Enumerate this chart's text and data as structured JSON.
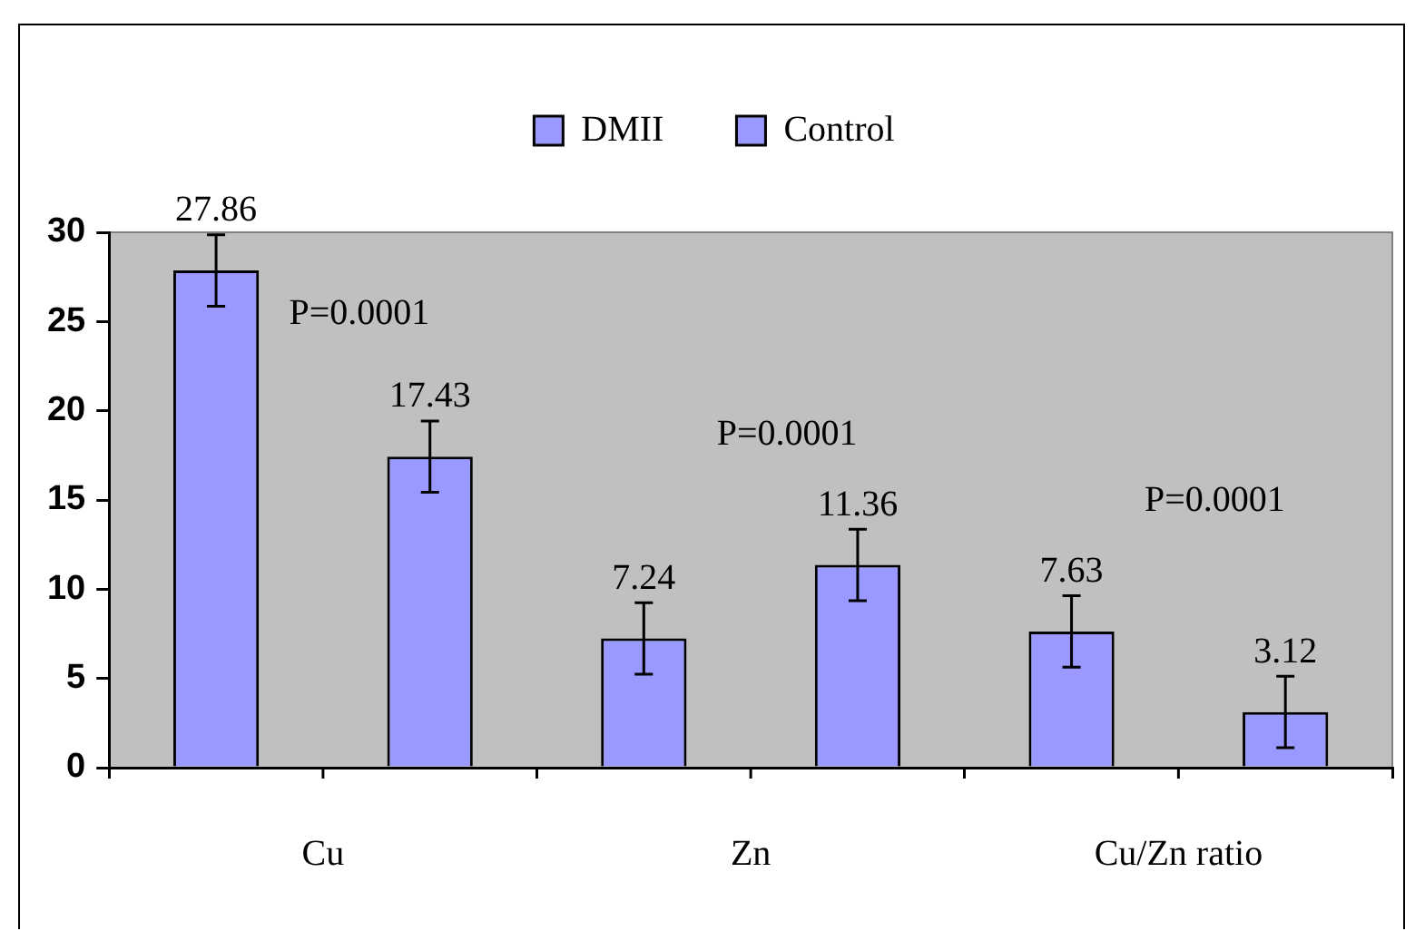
{
  "chart_data": {
    "type": "bar",
    "categories": [
      "Cu",
      "Zn",
      "Cu/Zn ratio"
    ],
    "series": [
      {
        "name": "DMII",
        "color": "#9999ff",
        "values": [
          27.86,
          7.24,
          7.63
        ],
        "errors": [
          2,
          2,
          2
        ]
      },
      {
        "name": "Control",
        "color": "#9999ff",
        "values": [
          17.43,
          11.36,
          3.12
        ],
        "errors": [
          2,
          2,
          2
        ]
      }
    ],
    "ylim": [
      0,
      30
    ],
    "yticks": [
      0,
      5,
      10,
      15,
      20,
      25,
      30
    ],
    "grid": false,
    "legend": "top",
    "data_labels": true,
    "annotations": [
      "P=0.0001",
      "P=0.0001",
      "P=0.0001"
    ]
  }
}
